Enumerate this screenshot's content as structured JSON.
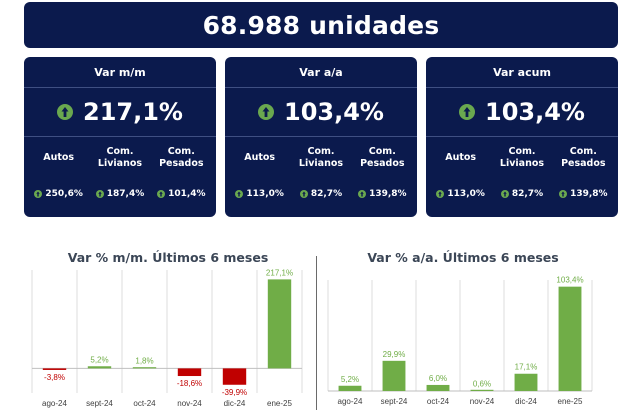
{
  "banner": {
    "total": "68.988 unidades"
  },
  "cards": [
    {
      "title": "Var m/m",
      "main": "217,1%",
      "sub": [
        {
          "label": "Autos",
          "value": "250,6%"
        },
        {
          "label": "Com.\nLivianos",
          "value": "187,4%"
        },
        {
          "label": "Com.\nPesados",
          "value": "101,4%"
        }
      ]
    },
    {
      "title": "Var a/a",
      "main": "103,4%",
      "sub": [
        {
          "label": "Autos",
          "value": "113,0%"
        },
        {
          "label": "Com.\nLivianos",
          "value": "82,7%"
        },
        {
          "label": "Com.\nPesados",
          "value": "139,8%"
        }
      ]
    },
    {
      "title": "Var acum",
      "main": "103,4%",
      "sub": [
        {
          "label": "Autos",
          "value": "113,0%"
        },
        {
          "label": "Com.\nLivianos",
          "value": "82,7%"
        },
        {
          "label": "Com.\nPesados",
          "value": "139,8%"
        }
      ]
    }
  ],
  "icons": {
    "up": "up-arrow-circle-icon"
  },
  "colors": {
    "navy": "#0b1a4d",
    "green": "#70ad47",
    "red": "#c00000",
    "up_icon_fill": "#6aa84f"
  },
  "chart_data": [
    {
      "type": "bar",
      "title": "Var % m/m. Últimos 6 meses",
      "categories": [
        "ago-24",
        "sept-24",
        "oct-24",
        "nov-24",
        "dic-24",
        "ene-25"
      ],
      "values": [
        -3.8,
        5.2,
        1.8,
        -18.6,
        -39.9,
        217.1
      ],
      "labels": [
        "-3,8%",
        "5,2%",
        "1,8%",
        "-18,6%",
        "-39,9%",
        "217,1%"
      ],
      "ylim": [
        -60,
        240
      ],
      "grid": true
    },
    {
      "type": "bar",
      "title": "Var % a/a. Últimos 6 meses",
      "categories": [
        "ago-24",
        "sept-24",
        "oct-24",
        "nov-24",
        "dic-24",
        "ene-25"
      ],
      "values": [
        5.2,
        29.9,
        6.0,
        0.6,
        17.1,
        103.4
      ],
      "labels": [
        "5,2%",
        "29,9%",
        "6,0%",
        "0,6%",
        "17,1%",
        "103,4%"
      ],
      "ylim": [
        0,
        110
      ],
      "grid": true
    }
  ]
}
